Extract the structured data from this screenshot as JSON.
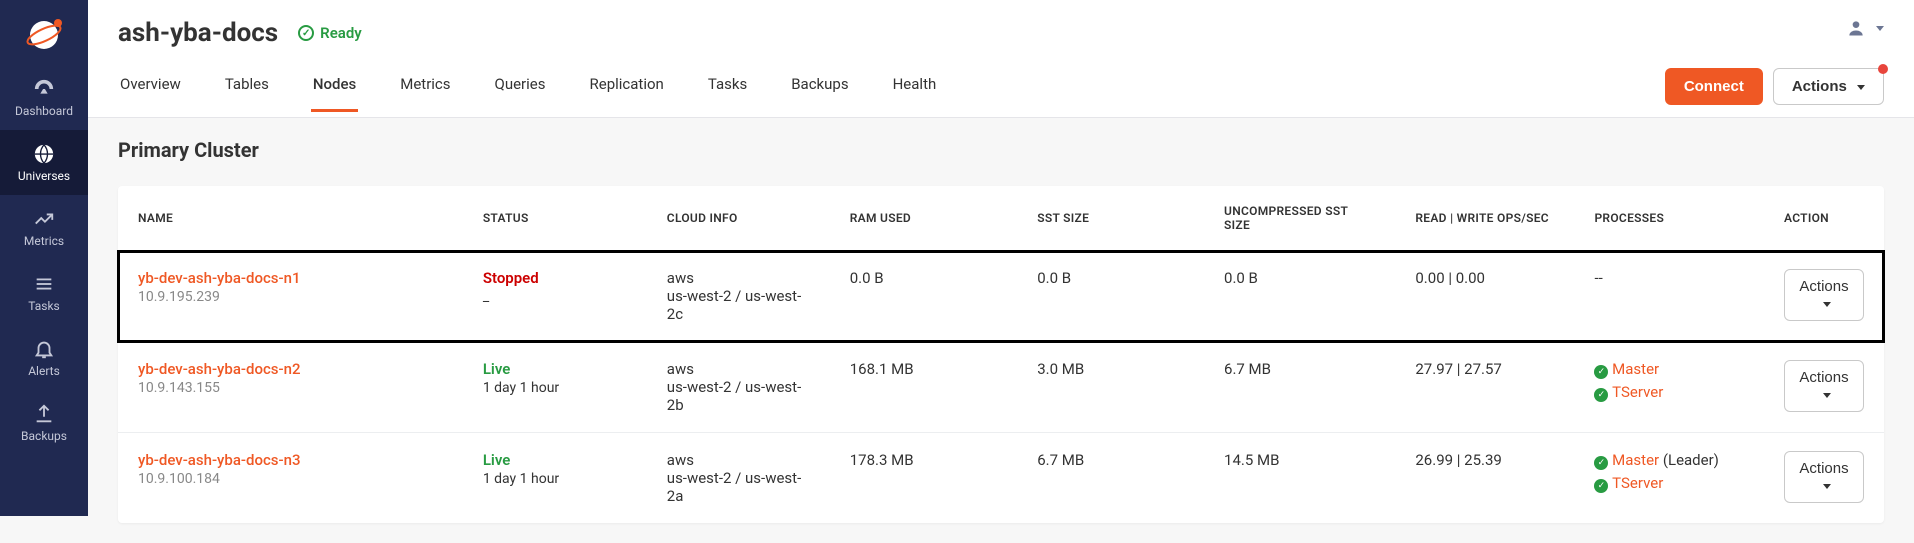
{
  "sidebar": {
    "items": [
      {
        "label": "Dashboard"
      },
      {
        "label": "Universes"
      },
      {
        "label": "Metrics"
      },
      {
        "label": "Tasks"
      },
      {
        "label": "Alerts"
      },
      {
        "label": "Backups"
      }
    ]
  },
  "header": {
    "title": "ash-yba-docs",
    "status_label": "Ready",
    "connect_label": "Connect",
    "actions_label": "Actions"
  },
  "tabs": [
    "Overview",
    "Tables",
    "Nodes",
    "Metrics",
    "Queries",
    "Replication",
    "Tasks",
    "Backups",
    "Health"
  ],
  "active_tab": "Nodes",
  "section_title": "Primary Cluster",
  "columns": [
    "Name",
    "Status",
    "Cloud Info",
    "RAM Used",
    "SST Size",
    "Uncompressed SST Size",
    "Read | Write ops/sec",
    "Processes",
    "Action"
  ],
  "row_actions_label": "Actions",
  "colors": {
    "sidebar_bg": "#202951",
    "sidebar_active_bg": "#151b38",
    "accent": "#ef5824",
    "status_green": "#289b42",
    "status_red": "#cc0000",
    "body_bg": "#f7f7f7",
    "border": "#e5e5e9"
  },
  "nodes": [
    {
      "name": "yb-dev-ash-yba-docs-n1",
      "ip": "10.9.195.239",
      "status": "Stopped",
      "status_sub": "_",
      "cloud_provider": "aws",
      "cloud_region": "us-west-2 / us-west-2c",
      "ram": "0.0 B",
      "sst": "0.0 B",
      "uncomp": "0.0 B",
      "rw": "0.00 | 0.00",
      "processes": "--",
      "highlighted": true
    },
    {
      "name": "yb-dev-ash-yba-docs-n2",
      "ip": "10.9.143.155",
      "status": "Live",
      "status_sub": "1 day 1 hour",
      "cloud_provider": "aws",
      "cloud_region": "us-west-2 / us-west-2b",
      "ram": "168.1 MB",
      "sst": "3.0 MB",
      "uncomp": "6.7 MB",
      "rw": "27.97 | 27.57",
      "master": "Master",
      "tserver": "TServer",
      "highlighted": false
    },
    {
      "name": "yb-dev-ash-yba-docs-n3",
      "ip": "10.9.100.184",
      "status": "Live",
      "status_sub": "1 day 1 hour",
      "cloud_provider": "aws",
      "cloud_region": "us-west-2 / us-west-2a",
      "ram": "178.3 MB",
      "sst": "6.7 MB",
      "uncomp": "14.5 MB",
      "rw": "26.99 | 25.39",
      "master": "Master",
      "master_leader": "(Leader)",
      "tserver": "TServer",
      "highlighted": false
    }
  ]
}
